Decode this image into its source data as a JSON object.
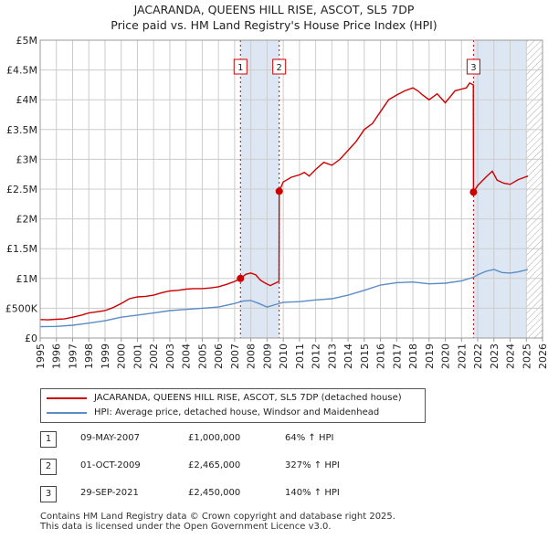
{
  "title_line1": "JACARANDA, QUEENS HILL RISE, ASCOT, SL5 7DP",
  "title_line2": "Price paid vs. HM Land Registry's House Price Index (HPI)",
  "colors": {
    "property": "#cc0000",
    "hpi": "#5b8cc6",
    "highlight": "#dde6f3",
    "grid": "#cccccc"
  },
  "legend": {
    "property": "JACARANDA, QUEENS HILL RISE, ASCOT, SL5 7DP (detached house)",
    "hpi": "HPI: Average price, detached house, Windsor and Maidenhead"
  },
  "transactions": [
    {
      "num": "1",
      "date": "09-MAY-2007",
      "price": "£1,000,000",
      "hpi": "64% ↑ HPI"
    },
    {
      "num": "2",
      "date": "01-OCT-2009",
      "price": "£2,465,000",
      "hpi": "327% ↑ HPI"
    },
    {
      "num": "3",
      "date": "29-SEP-2021",
      "price": "£2,450,000",
      "hpi": "140% ↑ HPI"
    }
  ],
  "footer_line1": "Contains HM Land Registry data © Crown copyright and database right 2025.",
  "footer_line2": "This data is licensed under the Open Government Licence v3.0.",
  "chart_data": {
    "type": "line",
    "xlim": [
      1995,
      2026
    ],
    "ylim": [
      0,
      5000000
    ],
    "x_ticks": [
      "1995",
      "1996",
      "1997",
      "1998",
      "1999",
      "2000",
      "2001",
      "2002",
      "2003",
      "2004",
      "2005",
      "2006",
      "2007",
      "2008",
      "2009",
      "2010",
      "2011",
      "2012",
      "2013",
      "2014",
      "2015",
      "2016",
      "2017",
      "2018",
      "2019",
      "2020",
      "2021",
      "2022",
      "2023",
      "2024",
      "2025",
      "2026"
    ],
    "y_ticks": [
      {
        "value": 0,
        "label": "£0"
      },
      {
        "value": 500000,
        "label": "£500K"
      },
      {
        "value": 1000000,
        "label": "£1M"
      },
      {
        "value": 1500000,
        "label": "£1.5M"
      },
      {
        "value": 2000000,
        "label": "£2M"
      },
      {
        "value": 2500000,
        "label": "£2.5M"
      },
      {
        "value": 3000000,
        "label": "£3M"
      },
      {
        "value": 3500000,
        "label": "£3.5M"
      },
      {
        "value": 4000000,
        "label": "£4M"
      },
      {
        "value": 4500000,
        "label": "£4.5M"
      },
      {
        "value": 5000000,
        "label": "£5M"
      }
    ],
    "grid": true,
    "highlight_ranges": [
      [
        2007.36,
        2009.75
      ],
      [
        2021.74,
        2025.0
      ]
    ],
    "hatched_range": [
      2025.0,
      2026.0
    ],
    "markers": [
      {
        "label": "1",
        "x": 2007.36,
        "y": 1000000
      },
      {
        "label": "2",
        "x": 2009.75,
        "y": 2465000
      },
      {
        "label": "3",
        "x": 2021.74,
        "y": 2450000
      }
    ],
    "series": [
      {
        "name": "JACARANDA, QUEENS HILL RISE, ASCOT, SL5 7DP (detached house)",
        "points": [
          [
            1995.0,
            310000
          ],
          [
            1995.5,
            305000
          ],
          [
            1996.0,
            315000
          ],
          [
            1996.5,
            320000
          ],
          [
            1997.0,
            350000
          ],
          [
            1997.5,
            380000
          ],
          [
            1998.0,
            420000
          ],
          [
            1998.5,
            440000
          ],
          [
            1999.0,
            460000
          ],
          [
            1999.5,
            510000
          ],
          [
            2000.0,
            580000
          ],
          [
            2000.5,
            660000
          ],
          [
            2001.0,
            690000
          ],
          [
            2001.5,
            700000
          ],
          [
            2002.0,
            720000
          ],
          [
            2002.5,
            760000
          ],
          [
            2003.0,
            790000
          ],
          [
            2003.5,
            800000
          ],
          [
            2004.0,
            820000
          ],
          [
            2004.5,
            830000
          ],
          [
            2005.0,
            830000
          ],
          [
            2005.5,
            840000
          ],
          [
            2006.0,
            860000
          ],
          [
            2006.5,
            900000
          ],
          [
            2007.0,
            950000
          ],
          [
            2007.36,
            1000000
          ],
          [
            2007.7,
            1070000
          ],
          [
            2008.0,
            1090000
          ],
          [
            2008.3,
            1060000
          ],
          [
            2008.6,
            970000
          ],
          [
            2008.9,
            920000
          ],
          [
            2009.2,
            880000
          ],
          [
            2009.5,
            920000
          ],
          [
            2009.74,
            950000
          ],
          [
            2009.75,
            2465000
          ],
          [
            2010.0,
            2620000
          ],
          [
            2010.5,
            2700000
          ],
          [
            2011.0,
            2740000
          ],
          [
            2011.3,
            2780000
          ],
          [
            2011.6,
            2720000
          ],
          [
            2012.0,
            2830000
          ],
          [
            2012.5,
            2950000
          ],
          [
            2013.0,
            2900000
          ],
          [
            2013.5,
            3000000
          ],
          [
            2014.0,
            3150000
          ],
          [
            2014.5,
            3300000
          ],
          [
            2015.0,
            3500000
          ],
          [
            2015.5,
            3600000
          ],
          [
            2016.0,
            3800000
          ],
          [
            2016.5,
            4000000
          ],
          [
            2017.0,
            4080000
          ],
          [
            2017.5,
            4150000
          ],
          [
            2018.0,
            4200000
          ],
          [
            2018.3,
            4150000
          ],
          [
            2018.6,
            4080000
          ],
          [
            2019.0,
            4000000
          ],
          [
            2019.5,
            4100000
          ],
          [
            2020.0,
            3950000
          ],
          [
            2020.3,
            4050000
          ],
          [
            2020.6,
            4150000
          ],
          [
            2021.0,
            4180000
          ],
          [
            2021.3,
            4200000
          ],
          [
            2021.5,
            4280000
          ],
          [
            2021.73,
            4250000
          ],
          [
            2021.74,
            2450000
          ],
          [
            2022.0,
            2560000
          ],
          [
            2022.5,
            2700000
          ],
          [
            2022.9,
            2800000
          ],
          [
            2023.2,
            2650000
          ],
          [
            2023.6,
            2600000
          ],
          [
            2024.0,
            2580000
          ],
          [
            2024.5,
            2660000
          ],
          [
            2024.9,
            2700000
          ],
          [
            2025.1,
            2720000
          ]
        ]
      },
      {
        "name": "HPI: Average price, detached house, Windsor and Maidenhead",
        "points": [
          [
            1995.0,
            190000
          ],
          [
            1996.0,
            195000
          ],
          [
            1997.0,
            215000
          ],
          [
            1998.0,
            250000
          ],
          [
            1999.0,
            290000
          ],
          [
            2000.0,
            350000
          ],
          [
            2001.0,
            385000
          ],
          [
            2002.0,
            420000
          ],
          [
            2003.0,
            460000
          ],
          [
            2004.0,
            480000
          ],
          [
            2005.0,
            500000
          ],
          [
            2006.0,
            520000
          ],
          [
            2007.0,
            580000
          ],
          [
            2007.5,
            620000
          ],
          [
            2008.0,
            630000
          ],
          [
            2008.5,
            580000
          ],
          [
            2009.0,
            520000
          ],
          [
            2009.5,
            560000
          ],
          [
            2010.0,
            600000
          ],
          [
            2011.0,
            610000
          ],
          [
            2012.0,
            640000
          ],
          [
            2013.0,
            660000
          ],
          [
            2014.0,
            720000
          ],
          [
            2015.0,
            800000
          ],
          [
            2016.0,
            890000
          ],
          [
            2017.0,
            930000
          ],
          [
            2018.0,
            940000
          ],
          [
            2019.0,
            910000
          ],
          [
            2020.0,
            920000
          ],
          [
            2021.0,
            960000
          ],
          [
            2021.74,
            1020000
          ],
          [
            2022.0,
            1060000
          ],
          [
            2022.5,
            1120000
          ],
          [
            2023.0,
            1150000
          ],
          [
            2023.5,
            1100000
          ],
          [
            2024.0,
            1090000
          ],
          [
            2024.5,
            1110000
          ],
          [
            2025.1,
            1150000
          ]
        ]
      }
    ]
  }
}
